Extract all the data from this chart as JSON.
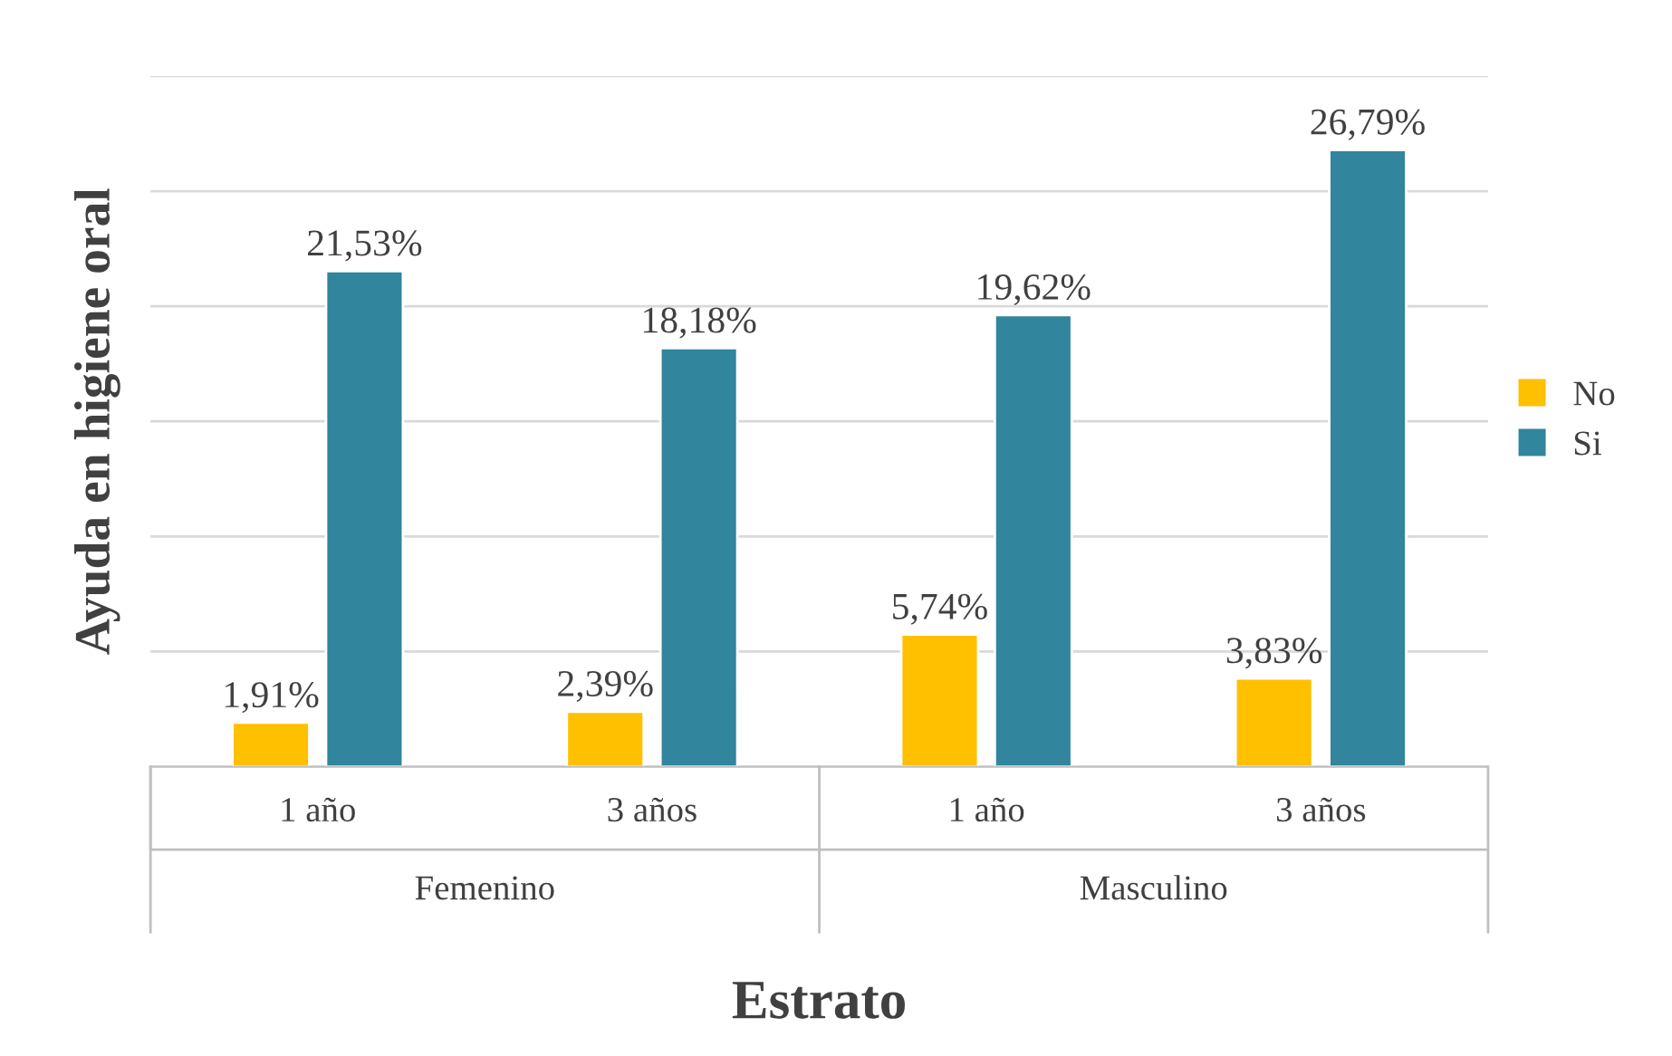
{
  "chart_data": {
    "type": "bar",
    "xlabel": "Estrato",
    "ylabel": "Ayuda en higiene oral",
    "categories": [
      "1 año",
      "3 años",
      "1 año",
      "3 años"
    ],
    "series": [
      {
        "name": "No",
        "color": "#ffc000",
        "values": [
          1.91,
          2.39,
          5.74,
          3.83
        ],
        "value_labels": [
          "1,91%",
          "2,39%",
          "5,74%",
          "3,83%"
        ]
      },
      {
        "name": "Si",
        "color": "#31859c",
        "values": [
          21.53,
          18.18,
          19.62,
          26.79
        ],
        "value_labels": [
          "21,53%",
          "18,18%",
          "19,62%",
          "26,79%"
        ]
      }
    ],
    "annotations": [
      "Femenino",
      "Masculino"
    ],
    "ylim": [
      0,
      30
    ],
    "yticks": [
      {
        "value": 0,
        "label": null
      },
      {
        "value": 5,
        "label": null
      },
      {
        "value": 10,
        "label": null
      },
      {
        "value": 15,
        "label": null
      },
      {
        "value": 20,
        "label": null
      },
      {
        "value": 25,
        "label": null
      },
      {
        "value": 30,
        "label": null
      }
    ],
    "tick_labels": "x",
    "grid": "y",
    "legend": "right"
  }
}
